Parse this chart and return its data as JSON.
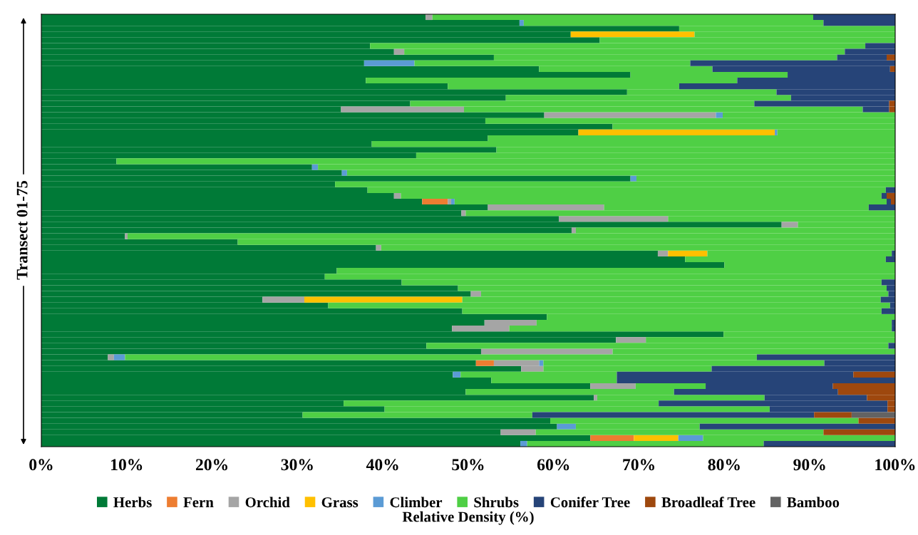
{
  "chart_data": {
    "type": "bar",
    "orientation": "horizontal",
    "stacked": true,
    "xlabel": "Relative Density (%)",
    "ylabel": "Transect 01-75",
    "categories": [
      null,
      null,
      null,
      null,
      null,
      null,
      null,
      null,
      null,
      null,
      null,
      null,
      null,
      null,
      null,
      null,
      null,
      null,
      null,
      null,
      null,
      null,
      null,
      null,
      null,
      null,
      null,
      null,
      null,
      null,
      null,
      null,
      null,
      null,
      null,
      null,
      null,
      null,
      null,
      null,
      null,
      null,
      null,
      null,
      null,
      null,
      null,
      null,
      null,
      null,
      null,
      null,
      null,
      null,
      null,
      null,
      null,
      null,
      null,
      null,
      null,
      null,
      null,
      null,
      null,
      null,
      null,
      null,
      null,
      null,
      null,
      null,
      null,
      null,
      null
    ],
    "xlim": [
      0,
      100
    ],
    "xticks": [
      {
        "value": 0,
        "label": "0%"
      },
      {
        "value": 10,
        "label": "10%"
      },
      {
        "value": 20,
        "label": "20%"
      },
      {
        "value": 30,
        "label": "30%"
      },
      {
        "value": 40,
        "label": "40%"
      },
      {
        "value": 50,
        "label": "50%"
      },
      {
        "value": 60,
        "label": "60%"
      },
      {
        "value": 70,
        "label": "70%"
      },
      {
        "value": 80,
        "label": "80%"
      },
      {
        "value": 90,
        "label": "90%"
      },
      {
        "value": 100,
        "label": "100%"
      }
    ],
    "grid": false,
    "legend": "bottom",
    "series": [
      {
        "name": "Herbs",
        "color": "#007a37",
        "values": [
          45.0,
          56.0,
          74.7,
          62.0,
          65.4,
          38.5,
          41.3,
          53.0,
          37.8,
          58.3,
          69.0,
          38.0,
          47.6,
          68.6,
          54.4,
          43.2,
          35.1,
          58.9,
          52.0,
          66.9,
          62.9,
          52.3,
          38.7,
          53.3,
          43.9,
          8.8,
          31.7,
          35.2,
          69.0,
          34.4,
          38.2,
          41.3,
          44.6,
          52.3,
          49.2,
          60.6,
          86.7,
          62.1,
          9.8,
          23.0,
          39.2,
          72.2,
          75.4,
          80.0,
          34.6,
          33.2,
          42.2,
          48.8,
          50.3,
          25.9,
          33.6,
          49.3,
          59.2,
          51.9,
          48.1,
          79.9,
          67.3,
          45.1,
          51.5,
          7.8,
          50.9,
          56.2,
          48.2,
          52.7,
          64.3,
          49.7,
          64.7,
          35.4,
          40.2,
          30.6,
          59.6,
          60.4,
          53.8,
          64.3,
          56.1
        ]
      },
      {
        "name": "Fern",
        "color": "#ed7d31",
        "values": [
          0,
          0,
          0,
          0,
          0,
          0,
          0,
          0,
          0,
          0,
          0,
          0,
          0,
          0,
          0,
          0,
          0,
          0,
          0,
          0,
          0,
          0,
          0,
          0,
          0,
          0,
          0,
          0,
          0,
          0,
          0,
          0,
          3.0,
          0,
          0,
          0,
          0,
          0,
          0,
          0,
          0,
          0,
          0,
          0,
          0,
          0,
          0,
          0,
          0,
          0,
          0,
          0,
          0,
          0,
          0,
          0,
          0,
          0,
          0,
          0,
          2.1,
          0,
          0,
          0,
          0,
          0,
          0,
          0,
          0,
          0,
          0,
          0,
          0,
          5.1,
          0
        ]
      },
      {
        "name": "Orchid",
        "color": "#a5a5a5",
        "values": [
          0.8,
          0,
          0,
          0,
          0,
          0,
          1.2,
          0,
          0,
          0,
          0,
          0,
          0,
          0,
          0,
          0,
          14.4,
          20.1,
          0,
          0,
          0,
          0,
          0,
          0,
          0,
          0,
          0,
          0,
          0,
          0,
          0,
          0.8,
          0.4,
          13.6,
          0.5,
          12.8,
          1.9,
          0.5,
          0.3,
          0,
          0.6,
          1.2,
          0,
          0,
          0,
          0,
          0,
          0,
          1.2,
          4.9,
          0,
          0,
          0,
          6.1,
          6.7,
          0,
          3.5,
          0,
          15.4,
          0.7,
          5.3,
          2.6,
          0,
          0,
          5.3,
          0,
          0.4,
          0,
          0,
          0,
          0,
          0,
          4.1,
          0,
          0
        ]
      },
      {
        "name": "Grass",
        "color": "#ffc000",
        "values": [
          0,
          0,
          0,
          14.5,
          0,
          0,
          0,
          0,
          0,
          0,
          0,
          0,
          0,
          0,
          0,
          0,
          0,
          0,
          0,
          0,
          23.0,
          0,
          0,
          0,
          0,
          0,
          0,
          0,
          0,
          0,
          0,
          0,
          0,
          0,
          0,
          0,
          0,
          0,
          0,
          0,
          0,
          4.6,
          0,
          0,
          0,
          0,
          0,
          0,
          0,
          18.5,
          0,
          0,
          0,
          0,
          0,
          0,
          0,
          0,
          0,
          0,
          0,
          0,
          0,
          0,
          0,
          0,
          0,
          0,
          0,
          0,
          0,
          0,
          0,
          5.2,
          0
        ]
      },
      {
        "name": "Climber",
        "color": "#5b9bd5",
        "values": [
          0,
          0.5,
          0,
          0,
          0,
          0,
          0,
          0,
          5.9,
          0,
          0,
          0,
          0,
          0,
          0,
          0,
          0,
          0.8,
          0,
          0,
          0.3,
          0,
          0,
          0,
          0,
          0,
          0.7,
          0.6,
          0.7,
          0,
          0,
          0,
          0.4,
          0,
          0,
          0,
          0,
          0,
          0,
          0,
          0,
          0,
          0,
          0,
          0,
          0,
          0,
          0,
          0,
          0,
          0,
          0,
          0,
          0,
          0,
          0,
          0,
          0,
          0,
          1.3,
          0.5,
          0,
          0.9,
          0,
          0,
          0,
          0,
          0,
          0,
          0,
          0,
          2.2,
          0,
          2.9,
          0.8
        ]
      },
      {
        "name": "Shrubs",
        "color": "#4fcf45",
        "values": [
          44.6,
          35.1,
          25.3,
          23.5,
          34.6,
          58.0,
          51.6,
          40.2,
          32.3,
          20.3,
          18.4,
          43.5,
          27.1,
          17.5,
          33.4,
          40.3,
          46.7,
          20.2,
          48.0,
          33.1,
          13.8,
          47.7,
          61.3,
          46.7,
          56.1,
          91.2,
          67.6,
          64.2,
          30.3,
          65.6,
          60.7,
          56.3,
          50.6,
          31.0,
          50.3,
          26.6,
          11.4,
          37.4,
          89.9,
          77.0,
          60.2,
          21.6,
          23.5,
          20.0,
          65.4,
          66.8,
          56.2,
          50.2,
          47.7,
          49.0,
          65.8,
          49.1,
          40.8,
          41.6,
          44.8,
          20.1,
          29.2,
          54.1,
          33.1,
          74.0,
          32.9,
          19.7,
          18.3,
          14.7,
          8.2,
          24.4,
          19.6,
          36.9,
          45.1,
          26.9,
          36.1,
          14.5,
          33.7,
          22.5,
          27.7
        ]
      },
      {
        "name": "Conifer Tree",
        "color": "#264478",
        "values": [
          9.6,
          8.4,
          0,
          0,
          0,
          3.5,
          5.9,
          5.8,
          24.0,
          20.8,
          12.6,
          18.5,
          25.3,
          13.9,
          12.2,
          15.8,
          3.1,
          0,
          0,
          0,
          0,
          0,
          0,
          0,
          0,
          0,
          0,
          0,
          0,
          0,
          1.1,
          0.6,
          0.5,
          3.1,
          0,
          0,
          0,
          0,
          0,
          0,
          0,
          0.4,
          1.1,
          0,
          0,
          0,
          1.6,
          1.0,
          0.8,
          1.7,
          0.6,
          1.6,
          0,
          0.4,
          0.4,
          0,
          0,
          0.8,
          0,
          16.2,
          8.3,
          21.5,
          27.7,
          32.6,
          14.9,
          19.2,
          12.0,
          26.8,
          13.8,
          33.0,
          0,
          22.9,
          0,
          0,
          15.4
        ]
      },
      {
        "name": "Broadleaf Tree",
        "color": "#9e480e",
        "values": [
          0,
          0,
          0,
          0,
          0,
          0,
          0,
          1.0,
          0,
          0.6,
          0,
          0,
          0,
          0,
          0,
          0.7,
          0.7,
          0,
          0,
          0,
          0,
          0,
          0,
          0,
          0,
          0,
          0,
          0,
          0,
          0,
          0,
          1.0,
          0.5,
          0,
          0,
          0,
          0,
          0,
          0,
          0,
          0,
          0,
          0,
          0,
          0,
          0,
          0,
          0,
          0,
          0,
          0,
          0,
          0,
          0,
          0,
          0,
          0,
          0,
          0,
          0,
          0,
          0,
          4.9,
          0,
          7.3,
          6.7,
          3.3,
          0.9,
          0.9,
          4.4,
          4.3,
          0,
          8.4,
          0,
          0
        ]
      },
      {
        "name": "Bamboo",
        "color": "#636363",
        "values": [
          0,
          0,
          0,
          0,
          0,
          0,
          0,
          0,
          0,
          0,
          0,
          0,
          0,
          0,
          0,
          0,
          0,
          0,
          0,
          0,
          0,
          0,
          0,
          0,
          0,
          0,
          0,
          0,
          0,
          0,
          0,
          0,
          0,
          0,
          0,
          0,
          0,
          0,
          0,
          0,
          0,
          0,
          0,
          0,
          0,
          0,
          0,
          0,
          0,
          0,
          0,
          0,
          0,
          0,
          0,
          0,
          0,
          0,
          0,
          0,
          0,
          0,
          0,
          0,
          0,
          0,
          0,
          0,
          0,
          5.1,
          0,
          0,
          0,
          0,
          0
        ]
      }
    ]
  }
}
